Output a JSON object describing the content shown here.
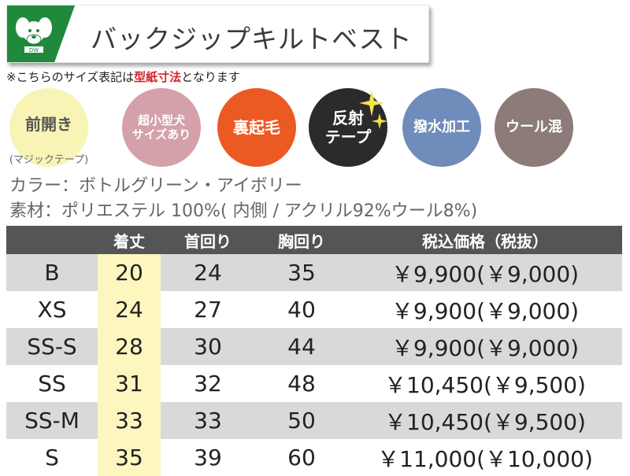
{
  "header": {
    "title": "バックジップキルトベスト"
  },
  "note": {
    "prefix": "※こちらのサイズ表記は",
    "highlight": "型紙寸法",
    "suffix": "となります"
  },
  "badges": [
    {
      "main": "前開き",
      "sub": "(マジックテープ)"
    },
    {
      "line1": "超小型犬",
      "line2": "サイズあり"
    },
    {
      "label": "裏起毛"
    },
    {
      "line1": "反射",
      "line2": "テープ"
    },
    {
      "label": "撥水加工"
    },
    {
      "label": "ウール混"
    }
  ],
  "colors": {
    "green": "#1f8a3c",
    "red": "#d4212a",
    "cream": "#f8f4b6",
    "pink": "#d4a0a9",
    "orange": "#ec5a24",
    "black": "#2b2b2b",
    "blue": "#6f8cba",
    "brown": "#8c7b78",
    "header_gray": "#555555",
    "row_gray": "#d9d9d9",
    "highlight": "#fdf7bf"
  },
  "product": {
    "color_line": "カラー：ボトルグリーン・アイボリー",
    "material_line": "素材：ポリエステル 100%( 内側 / アクリル92%ウール8%)"
  },
  "table": {
    "headers": [
      "",
      "着丈",
      "首回り",
      "胸回り",
      "税込価格（税抜）"
    ],
    "rows": [
      {
        "size": "B",
        "length": "20",
        "neck": "24",
        "chest": "35",
        "price": "￥9,900(￥9,000)"
      },
      {
        "size": "XS",
        "length": "24",
        "neck": "27",
        "chest": "40",
        "price": "￥9,900(￥9,000)"
      },
      {
        "size": "SS-S",
        "length": "28",
        "neck": "30",
        "chest": "44",
        "price": "￥9,900(￥9,000)"
      },
      {
        "size": "SS",
        "length": "31",
        "neck": "32",
        "chest": "48",
        "price": "￥10,450(￥9,500)"
      },
      {
        "size": "SS-M",
        "length": "33",
        "neck": "33",
        "chest": "50",
        "price": "￥10,450(￥9,500)"
      },
      {
        "size": "S",
        "length": "35",
        "neck": "39",
        "chest": "60",
        "price": "￥11,000(￥10,000)"
      }
    ]
  }
}
